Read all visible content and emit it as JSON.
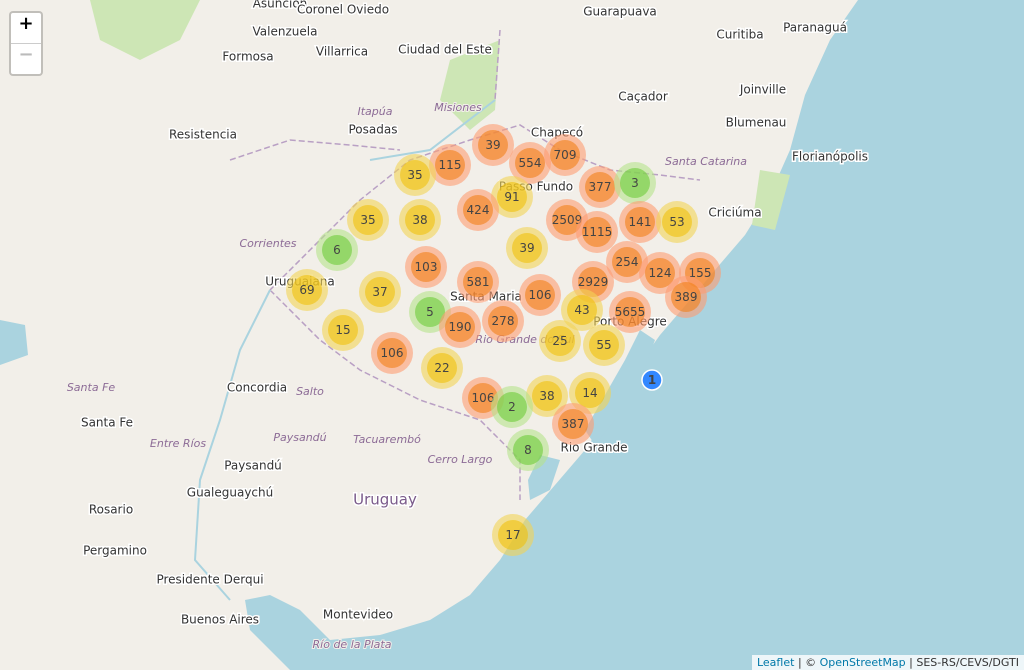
{
  "zoom": {
    "in": "+",
    "out": "−"
  },
  "places": [
    "Asunción",
    "Coronel Oviedo",
    "Valenzuela",
    "Ciudad del Este",
    "Formosa",
    "Villarrica",
    "Guarapuava",
    "Curitiba",
    "Paranaguá",
    "Joinville",
    "Caçador",
    "Blumenau",
    "Florianópolis",
    "Resistencia",
    "Posadas",
    "Itapúa",
    "Misiones",
    "Chapecó",
    "Passo Fundo",
    "Santa Catarina",
    "Criciúma",
    "Corrientes",
    "Uruguaiana",
    "Santa Maria",
    "Porto Alegre",
    "Rio Grande do Sul",
    "Rio Grande",
    "Santa Fe",
    "Concordia",
    "Salto",
    "Entre Ríos",
    "Paysandú",
    "Tacuarembó",
    "Cerro Largo",
    "Santa Fe",
    "Paysandú",
    "Gualeguaychú",
    "Uruguay",
    "Rosario",
    "Pergamino",
    "Presidente Derqui",
    "Buenos Aires",
    "Montevideo",
    "Río de la Plata"
  ],
  "clusters": [
    {
      "count": 39,
      "level": "large"
    },
    {
      "count": 115,
      "level": "large"
    },
    {
      "count": 554,
      "level": "large"
    },
    {
      "count": 709,
      "level": "large"
    },
    {
      "count": 35,
      "level": "medium"
    },
    {
      "count": 91,
      "level": "medium"
    },
    {
      "count": 377,
      "level": "large"
    },
    {
      "count": 3,
      "level": "small"
    },
    {
      "count": 35,
      "level": "medium"
    },
    {
      "count": 38,
      "level": "medium"
    },
    {
      "count": 424,
      "level": "large"
    },
    {
      "count": 2509,
      "level": "large"
    },
    {
      "count": 1115,
      "level": "large"
    },
    {
      "count": 141,
      "level": "large"
    },
    {
      "count": 53,
      "level": "medium"
    },
    {
      "count": 6,
      "level": "small"
    },
    {
      "count": 39,
      "level": "medium"
    },
    {
      "count": 103,
      "level": "large"
    },
    {
      "count": 254,
      "level": "large"
    },
    {
      "count": 124,
      "level": "large"
    },
    {
      "count": 155,
      "level": "large"
    },
    {
      "count": 581,
      "level": "large"
    },
    {
      "count": 2929,
      "level": "large"
    },
    {
      "count": 69,
      "level": "medium"
    },
    {
      "count": 37,
      "level": "medium"
    },
    {
      "count": 106,
      "level": "large"
    },
    {
      "count": 389,
      "level": "large"
    },
    {
      "count": 5,
      "level": "small"
    },
    {
      "count": 43,
      "level": "medium"
    },
    {
      "count": 5655,
      "level": "large"
    },
    {
      "count": 278,
      "level": "large"
    },
    {
      "count": 190,
      "level": "large"
    },
    {
      "count": 15,
      "level": "medium"
    },
    {
      "count": 25,
      "level": "medium"
    },
    {
      "count": 55,
      "level": "medium"
    },
    {
      "count": 106,
      "level": "large"
    },
    {
      "count": 22,
      "level": "medium"
    },
    {
      "count": 1,
      "level": "single"
    },
    {
      "count": 106,
      "level": "large"
    },
    {
      "count": 38,
      "level": "medium"
    },
    {
      "count": 14,
      "level": "medium"
    },
    {
      "count": 2,
      "level": "small"
    },
    {
      "count": 387,
      "level": "large"
    },
    {
      "count": 8,
      "level": "small"
    },
    {
      "count": 17,
      "level": "medium"
    }
  ],
  "attribution": {
    "leaflet": "Leaflet",
    "sep1": "| ©",
    "osm": "OpenStreetMap",
    "source": "| SES-RS/CEVS/DGTI"
  }
}
